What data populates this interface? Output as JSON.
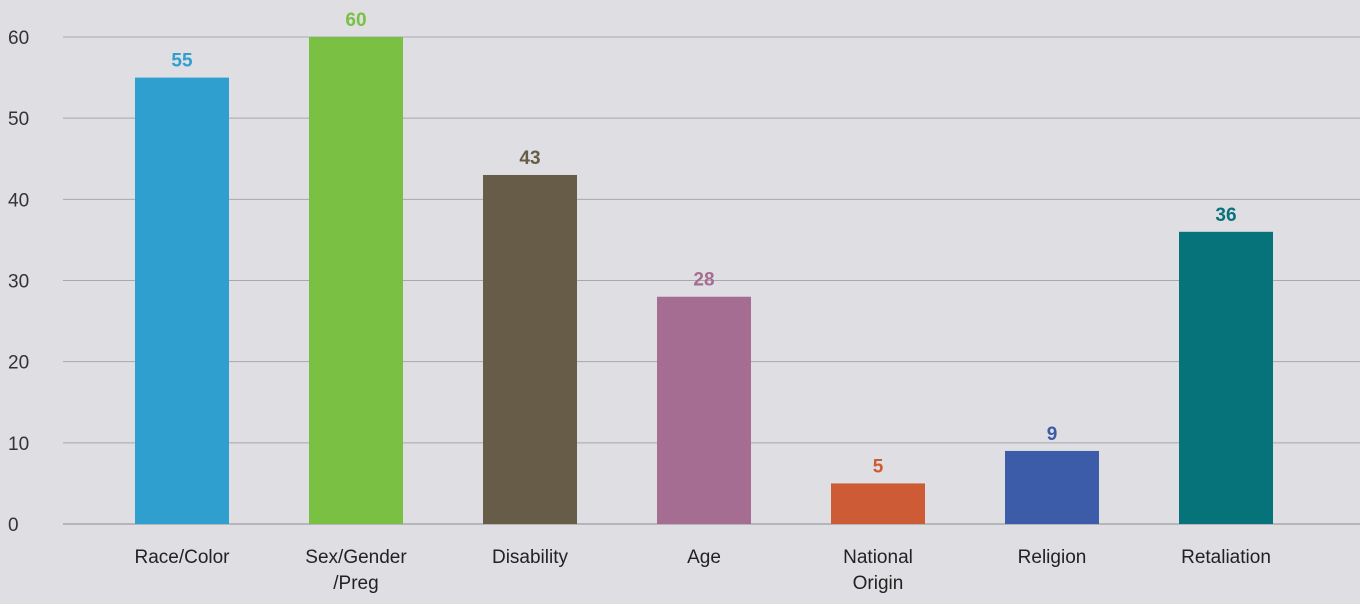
{
  "chart_data": {
    "type": "bar",
    "title": "",
    "xlabel": "",
    "ylabel": "",
    "ylim": [
      0,
      60
    ],
    "yticks": [
      0,
      10,
      20,
      30,
      40,
      50,
      60
    ],
    "grid": true,
    "legend": "none",
    "categories": [
      [
        "Race/Color"
      ],
      [
        "Sex/Gender",
        "/Preg"
      ],
      [
        "Disability"
      ],
      [
        "Age"
      ],
      [
        "National",
        "Origin"
      ],
      [
        "Religion"
      ],
      [
        "Retaliation"
      ]
    ],
    "values": [
      55,
      60,
      43,
      28,
      5,
      9,
      36
    ],
    "colors": [
      "#2f9fcf",
      "#7ac143",
      "#665c48",
      "#a56d91",
      "#cd5c36",
      "#3c5ba9",
      "#06737a"
    ]
  }
}
